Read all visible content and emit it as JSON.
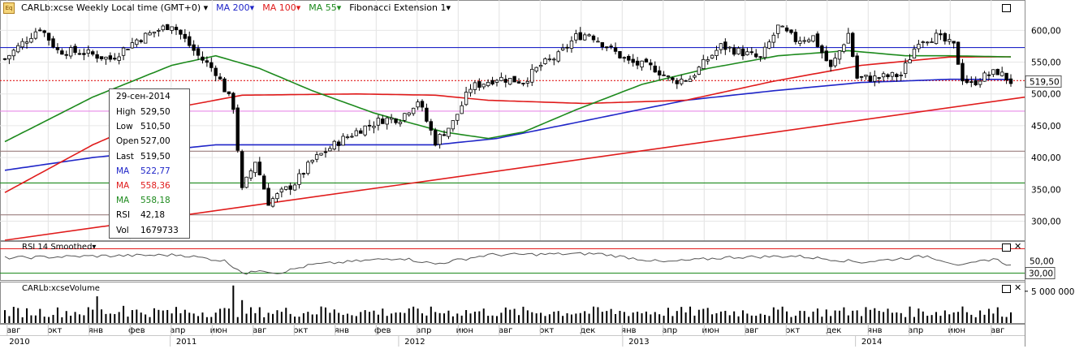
{
  "header": {
    "symbol_title": "CARLb:xcse Weekly Local time (GMT+0)",
    "logo_text": "Eq",
    "indicators": [
      {
        "label": "MA 200",
        "color": "#1f25c8"
      },
      {
        "label": "MA 100",
        "color": "#e01b1b"
      },
      {
        "label": "MA 55",
        "color": "#1d8a1d"
      },
      {
        "label": "Fibonacci Extension 1",
        "color": "#000000"
      }
    ]
  },
  "tooltip": {
    "date": "29-сен-2014",
    "rows": [
      {
        "k": "High",
        "v": "529,50",
        "color": "#000000"
      },
      {
        "k": "Low",
        "v": "510,50",
        "color": "#000000"
      },
      {
        "k": "Open",
        "v": "527,00",
        "color": "#000000"
      },
      {
        "k": "Last",
        "v": "519,50",
        "color": "#000000"
      },
      {
        "k": "MA",
        "v": "522,77",
        "color": "#1f25c8"
      },
      {
        "k": "MA",
        "v": "558,36",
        "color": "#e01b1b"
      },
      {
        "k": "MA",
        "v": "558,18",
        "color": "#1d8a1d"
      },
      {
        "k": "RSI",
        "v": "42,18",
        "color": "#000000"
      },
      {
        "k": "Vol",
        "v": "1679733",
        "color": "#000000"
      }
    ]
  },
  "rsi_panel": {
    "label": "RSI 14 Smoothed",
    "ticks": [
      "50,00"
    ],
    "current_label": "30,00"
  },
  "volume_panel": {
    "label": "CARLb:xcseVolume",
    "ticks": [
      "5 000 000"
    ]
  },
  "chart_data": {
    "type": "candlestick",
    "timeframe": "weekly",
    "price_axis": {
      "ylim": [
        270,
        640
      ],
      "ticks": [
        300,
        350,
        400,
        450,
        500,
        550,
        600
      ],
      "tick_labels": [
        "300,00",
        "350,00",
        "400,00",
        "450,00",
        "500,00",
        "550,00",
        "600,00"
      ]
    },
    "last_price_label": "519,50",
    "months": [
      "авг",
      "окт",
      "янв",
      "фев",
      "апр",
      "июн",
      "авг",
      "окт",
      "янв",
      "фев",
      "апр",
      "июн",
      "авг",
      "окт",
      "дек",
      "янв",
      "апр",
      "июн",
      "авг",
      "окт",
      "дек",
      "янв",
      "апр",
      "июн",
      "авг"
    ],
    "years": [
      "2010",
      "2011",
      "2012",
      "2013",
      "2014"
    ],
    "close_anchors": [
      {
        "w": 0,
        "v": 555
      },
      {
        "w": 4,
        "v": 580
      },
      {
        "w": 8,
        "v": 605
      },
      {
        "w": 12,
        "v": 568
      },
      {
        "w": 18,
        "v": 565
      },
      {
        "w": 24,
        "v": 555
      },
      {
        "w": 30,
        "v": 585
      },
      {
        "w": 38,
        "v": 610
      },
      {
        "w": 44,
        "v": 560
      },
      {
        "w": 48,
        "v": 535
      },
      {
        "w": 52,
        "v": 480
      },
      {
        "w": 54,
        "v": 348
      },
      {
        "w": 57,
        "v": 395
      },
      {
        "w": 60,
        "v": 330
      },
      {
        "w": 63,
        "v": 345
      },
      {
        "w": 66,
        "v": 360
      },
      {
        "w": 70,
        "v": 395
      },
      {
        "w": 76,
        "v": 425
      },
      {
        "w": 81,
        "v": 445
      },
      {
        "w": 86,
        "v": 460
      },
      {
        "w": 90,
        "v": 462
      },
      {
        "w": 94,
        "v": 490
      },
      {
        "w": 98,
        "v": 425
      },
      {
        "w": 102,
        "v": 455
      },
      {
        "w": 106,
        "v": 510
      },
      {
        "w": 112,
        "v": 525
      },
      {
        "w": 118,
        "v": 520
      },
      {
        "w": 122,
        "v": 545
      },
      {
        "w": 126,
        "v": 560
      },
      {
        "w": 130,
        "v": 590
      },
      {
        "w": 133,
        "v": 595
      },
      {
        "w": 136,
        "v": 580
      },
      {
        "w": 142,
        "v": 550
      },
      {
        "w": 148,
        "v": 540
      },
      {
        "w": 152,
        "v": 520
      },
      {
        "w": 156,
        "v": 525
      },
      {
        "w": 160,
        "v": 555
      },
      {
        "w": 163,
        "v": 575
      },
      {
        "w": 168,
        "v": 565
      },
      {
        "w": 172,
        "v": 555
      },
      {
        "w": 176,
        "v": 605
      },
      {
        "w": 180,
        "v": 585
      },
      {
        "w": 184,
        "v": 590
      },
      {
        "w": 188,
        "v": 540
      },
      {
        "w": 192,
        "v": 595
      },
      {
        "w": 194,
        "v": 525
      },
      {
        "w": 198,
        "v": 525
      },
      {
        "w": 204,
        "v": 530
      },
      {
        "w": 208,
        "v": 585
      },
      {
        "w": 212,
        "v": 590
      },
      {
        "w": 216,
        "v": 575
      },
      {
        "w": 218,
        "v": 525
      },
      {
        "w": 220,
        "v": 515
      },
      {
        "w": 222,
        "v": 525
      },
      {
        "w": 226,
        "v": 535
      },
      {
        "w": 229,
        "v": 519.5
      }
    ],
    "ma200_anchors": [
      {
        "w": 0,
        "v": 380
      },
      {
        "w": 20,
        "v": 400
      },
      {
        "w": 48,
        "v": 420
      },
      {
        "w": 70,
        "v": 420
      },
      {
        "w": 98,
        "v": 420
      },
      {
        "w": 112,
        "v": 430
      },
      {
        "w": 130,
        "v": 455
      },
      {
        "w": 155,
        "v": 490
      },
      {
        "w": 175,
        "v": 505
      },
      {
        "w": 195,
        "v": 518
      },
      {
        "w": 215,
        "v": 523
      },
      {
        "w": 229,
        "v": 522.77
      }
    ],
    "ma100_anchors": [
      {
        "w": 0,
        "v": 345
      },
      {
        "w": 20,
        "v": 420
      },
      {
        "w": 40,
        "v": 480
      },
      {
        "w": 54,
        "v": 498
      },
      {
        "w": 80,
        "v": 500
      },
      {
        "w": 98,
        "v": 498
      },
      {
        "w": 110,
        "v": 490
      },
      {
        "w": 132,
        "v": 485
      },
      {
        "w": 155,
        "v": 490
      },
      {
        "w": 175,
        "v": 520
      },
      {
        "w": 195,
        "v": 545
      },
      {
        "w": 215,
        "v": 558
      },
      {
        "w": 229,
        "v": 558.36
      }
    ],
    "ma55_anchors": [
      {
        "w": 0,
        "v": 425
      },
      {
        "w": 20,
        "v": 495
      },
      {
        "w": 38,
        "v": 545
      },
      {
        "w": 48,
        "v": 560
      },
      {
        "w": 58,
        "v": 540
      },
      {
        "w": 70,
        "v": 505
      },
      {
        "w": 84,
        "v": 470
      },
      {
        "w": 100,
        "v": 440
      },
      {
        "w": 110,
        "v": 430
      },
      {
        "w": 118,
        "v": 440
      },
      {
        "w": 130,
        "v": 475
      },
      {
        "w": 145,
        "v": 515
      },
      {
        "w": 160,
        "v": 540
      },
      {
        "w": 176,
        "v": 560
      },
      {
        "w": 192,
        "v": 568
      },
      {
        "w": 205,
        "v": 560
      },
      {
        "w": 215,
        "v": 560
      },
      {
        "w": 229,
        "v": 558.18
      }
    ],
    "fib_trendline": [
      {
        "w": 0,
        "v": 270
      },
      {
        "w": 234,
        "v": 495
      }
    ],
    "horizontal_levels": [
      {
        "v": 573,
        "color": "#1f25c8",
        "style": "solid"
      },
      {
        "v": 521,
        "color": "#e01b1b",
        "style": "dotted"
      },
      {
        "v": 473,
        "color": "#e88ae8",
        "style": "solid"
      },
      {
        "v": 410,
        "color": "#9b7f7f",
        "style": "solid"
      },
      {
        "v": 360,
        "color": "#1d8a1d",
        "style": "solid"
      },
      {
        "v": 310,
        "color": "#9b7f7f",
        "style": "solid"
      }
    ],
    "rsi": {
      "ylim": [
        20,
        80
      ],
      "levels": [
        {
          "v": 70,
          "color": "#e01b1b"
        },
        {
          "v": 30,
          "color": "#1d8a1d"
        }
      ],
      "last": 42.18,
      "anchors": [
        {
          "w": 0,
          "v": 55
        },
        {
          "w": 20,
          "v": 58
        },
        {
          "w": 40,
          "v": 60
        },
        {
          "w": 50,
          "v": 50
        },
        {
          "w": 55,
          "v": 28
        },
        {
          "w": 58,
          "v": 36
        },
        {
          "w": 62,
          "v": 30
        },
        {
          "w": 70,
          "v": 44
        },
        {
          "w": 90,
          "v": 55
        },
        {
          "w": 98,
          "v": 45
        },
        {
          "w": 110,
          "v": 60
        },
        {
          "w": 135,
          "v": 62
        },
        {
          "w": 150,
          "v": 48
        },
        {
          "w": 165,
          "v": 56
        },
        {
          "w": 180,
          "v": 58
        },
        {
          "w": 195,
          "v": 48
        },
        {
          "w": 210,
          "v": 58
        },
        {
          "w": 218,
          "v": 42
        },
        {
          "w": 225,
          "v": 54
        },
        {
          "w": 229,
          "v": 42.18
        }
      ]
    },
    "volume": {
      "ylim": [
        0,
        6000000
      ],
      "last": 1679733,
      "spikes": [
        {
          "w": 21,
          "v": 4200000
        },
        {
          "w": 52,
          "v": 5900000
        },
        {
          "w": 54,
          "v": 3600000
        },
        {
          "w": 27,
          "v": 2700000
        },
        {
          "w": 72,
          "v": 2600000
        },
        {
          "w": 196,
          "v": 2500000
        },
        {
          "w": 218,
          "v": 2600000
        }
      ]
    }
  }
}
